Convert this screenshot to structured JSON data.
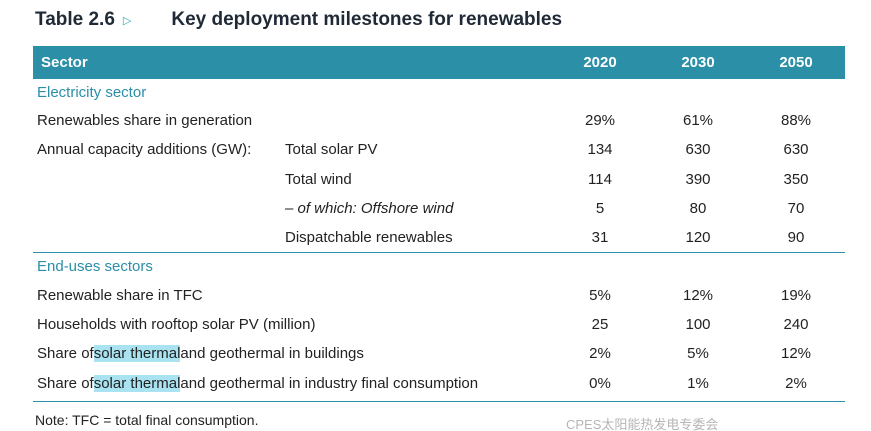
{
  "title": {
    "label": "Table 2.6",
    "arrow": "▷",
    "text": "Key deployment milestones for renewables"
  },
  "header": {
    "sector": "Sector",
    "years": [
      "2020",
      "2030",
      "2050"
    ]
  },
  "sections": [
    {
      "title": "Electricity sector",
      "rows": [
        {
          "label": "Renewables share in generation",
          "values": [
            "29%",
            "61%",
            "88%"
          ]
        },
        {
          "prefix": "Annual capacity additions (GW):",
          "label": "Total solar PV",
          "values": [
            "134",
            "630",
            "630"
          ]
        },
        {
          "label": "Total wind",
          "values": [
            "114",
            "390",
            "350"
          ]
        },
        {
          "label": "– of which: Offshore wind",
          "values": [
            "5",
            "80",
            "70"
          ]
        },
        {
          "label": "Dispatchable renewables",
          "values": [
            "31",
            "120",
            "90"
          ]
        }
      ]
    },
    {
      "title": "End-uses sectors",
      "rows": [
        {
          "label": "Renewable share in TFC",
          "values": [
            "5%",
            "12%",
            "19%"
          ]
        },
        {
          "label": "Households with rooftop solar PV (million)",
          "values": [
            "25",
            "100",
            "240"
          ]
        },
        {
          "pre": "Share of ",
          "highlight": "solar thermal",
          "post": " and geothermal in buildings",
          "values": [
            "2%",
            "5%",
            "12%"
          ]
        },
        {
          "pre": "Share of ",
          "highlight": "solar thermal",
          "post": " and geothermal in industry final consumption",
          "values": [
            "0%",
            "1%",
            "2%"
          ]
        }
      ]
    }
  ],
  "note": "Note: TFC = total final consumption.",
  "watermark": "CPES太阳能热发电专委会",
  "colors": {
    "accent": "#2a8fa7",
    "highlight": "#a9e3f2"
  }
}
